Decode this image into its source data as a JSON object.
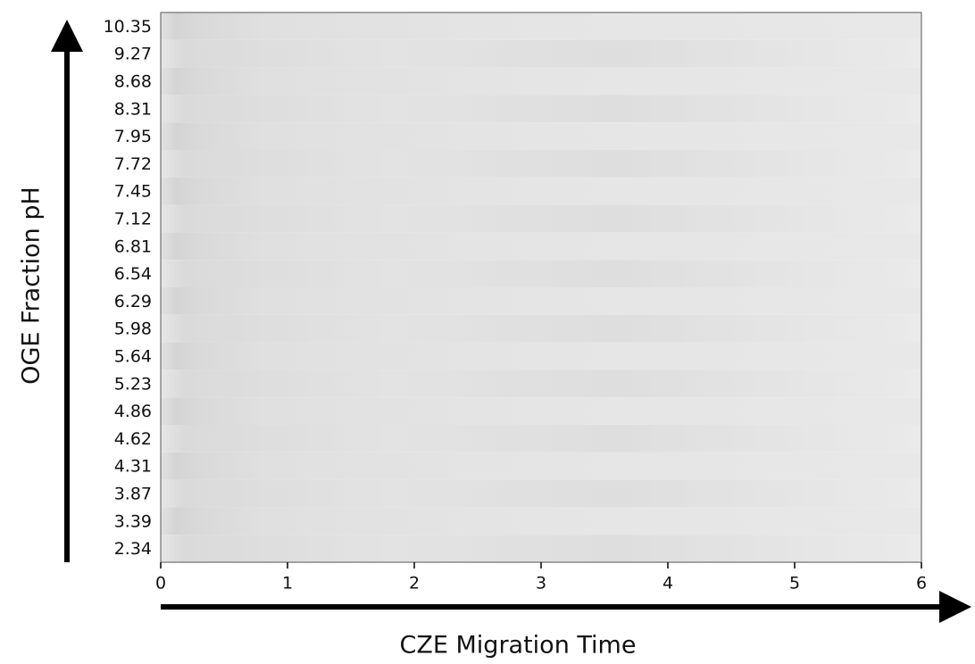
{
  "chart_data": {
    "type": "heatmap",
    "x_label": "CZE Migration Time",
    "y_label": "OGE Fraction pH",
    "categories": [
      "10.35",
      "9.27",
      "8.68",
      "8.31",
      "7.95",
      "7.72",
      "7.45",
      "7.12",
      "6.81",
      "6.54",
      "6.29",
      "5.98",
      "5.64",
      "5.23",
      "4.86",
      "4.62",
      "4.31",
      "3.87",
      "3.39",
      "2.34"
    ],
    "xlim": [
      0,
      6
    ],
    "xticks": [
      0,
      1,
      2,
      3,
      4,
      5,
      6
    ]
  }
}
